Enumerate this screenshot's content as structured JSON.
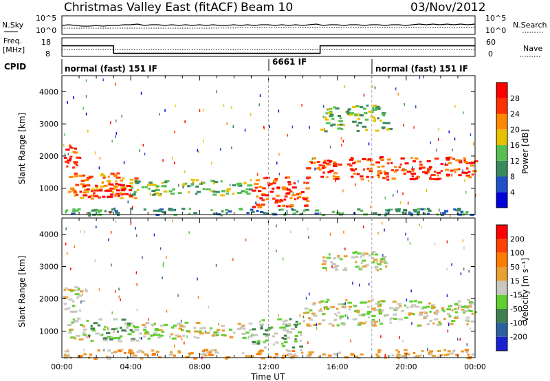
{
  "title": "Christmas Valley East (fitACF)",
  "beam_label": "Beam 10",
  "date": "03/Nov/2012",
  "noise_panel": {
    "left_label": "N.Sky",
    "right_label": "N.Search",
    "left_ticks": [
      "10^5",
      "10^0"
    ],
    "right_ticks": [
      "10^5",
      "10^0"
    ]
  },
  "freq_panel": {
    "left_label_line1": "Freq.",
    "left_label_line2": "[MHz]",
    "right_label": "Nave",
    "left_ticks": [
      "18",
      "8"
    ],
    "right_ticks": [
      "60",
      "0"
    ],
    "freq_steps": [
      {
        "from_hour": 0,
        "to_hour": 3.0,
        "mhz": 15
      },
      {
        "from_hour": 3.0,
        "to_hour": 15.0,
        "mhz": 10
      },
      {
        "from_hour": 15.0,
        "to_hour": 24,
        "mhz": 15
      }
    ]
  },
  "cpid": {
    "label": "CPID",
    "segments": [
      {
        "text": "normal (fast) 151 IF",
        "from_hour": 0
      },
      {
        "text": "6661 IF",
        "from_hour": 12.0
      },
      {
        "text": "normal (fast) 151 IF",
        "from_hour": 18.0
      }
    ]
  },
  "colors": {
    "power_scale": [
      "#0000dd",
      "#2050c8",
      "#3a8a60",
      "#55c050",
      "#e8c000",
      "#ff8800",
      "#ff3000",
      "#ff0000"
    ],
    "velocity_scale": [
      "#1820d0",
      "#2a60a0",
      "#408050",
      "#60d030",
      "#c8c8c0",
      "#e8a030",
      "#ff7a00",
      "#ff4000",
      "#ff0000"
    ]
  },
  "chart_data": [
    {
      "type": "heatmap",
      "name": "power",
      "ylabel": "Slant Range [km]",
      "xlabel": "",
      "xlim_hours": [
        0,
        24
      ],
      "ylim": [
        180,
        4500
      ],
      "y_ticks": [
        "1000",
        "2000",
        "3000",
        "4000"
      ],
      "x_ticks": [
        "00:00",
        "04:00",
        "08:00",
        "12:00",
        "16:00",
        "20:00",
        "00:00"
      ],
      "colorbar_label": "Power [dB]",
      "colorbar_ticks": [
        "28",
        "24",
        "20",
        "16",
        "12",
        "8",
        "4"
      ],
      "regions": [
        {
          "t0": 0.0,
          "t1": 1.0,
          "r0": 1600,
          "r1": 2400,
          "level": 6
        },
        {
          "t0": 0.3,
          "t1": 4.3,
          "r0": 700,
          "r1": 1500,
          "level": 5
        },
        {
          "t0": 1.0,
          "t1": 4.0,
          "r0": 750,
          "r1": 1200,
          "level": 7
        },
        {
          "t0": 4.0,
          "t1": 11.0,
          "r0": 800,
          "r1": 1300,
          "level": 3
        },
        {
          "t0": 11.0,
          "t1": 14.3,
          "r0": 400,
          "r1": 1400,
          "level": 6
        },
        {
          "t0": 14.0,
          "t1": 24.0,
          "r0": 1300,
          "r1": 2000,
          "level": 6
        },
        {
          "t0": 15.0,
          "t1": 19.0,
          "r0": 2800,
          "r1": 3600,
          "level": 3
        },
        {
          "t0": 0.0,
          "t1": 24.0,
          "r0": 180,
          "r1": 400,
          "level": 2
        }
      ]
    },
    {
      "type": "heatmap",
      "name": "velocity",
      "ylabel": "Slant Range [km]",
      "xlabel": "Time UT",
      "xlim_hours": [
        0,
        24
      ],
      "ylim": [
        180,
        4500
      ],
      "y_ticks": [
        "1000",
        "2000",
        "3000",
        "4000"
      ],
      "x_ticks": [
        "00:00",
        "04:00",
        "08:00",
        "12:00",
        "16:00",
        "20:00",
        "00:00"
      ],
      "colorbar_label": "Velocity [m s⁻¹]",
      "colorbar_ticks": [
        "200",
        "100",
        "50",
        "15",
        "-15",
        "-50",
        "-100",
        "-200"
      ],
      "regions": [
        {
          "t0": 0.0,
          "t1": 1.4,
          "r0": 1600,
          "r1": 2400,
          "level": 4
        },
        {
          "t0": 0.3,
          "t1": 1.5,
          "r0": 750,
          "r1": 1450,
          "level": 4
        },
        {
          "t0": 1.5,
          "t1": 4.3,
          "r0": 700,
          "r1": 1400,
          "level": 3
        },
        {
          "t0": 4.3,
          "t1": 11.0,
          "r0": 800,
          "r1": 1300,
          "level": 4
        },
        {
          "t0": 11.0,
          "t1": 14.0,
          "r0": 500,
          "r1": 1400,
          "level": 3
        },
        {
          "t0": 14.0,
          "t1": 24.0,
          "r0": 1200,
          "r1": 2000,
          "level": 4
        },
        {
          "t0": 15.0,
          "t1": 19.0,
          "r0": 2900,
          "r1": 3500,
          "level": 4
        },
        {
          "t0": 0.0,
          "t1": 24.0,
          "r0": 180,
          "r1": 450,
          "level": 5
        }
      ]
    }
  ]
}
